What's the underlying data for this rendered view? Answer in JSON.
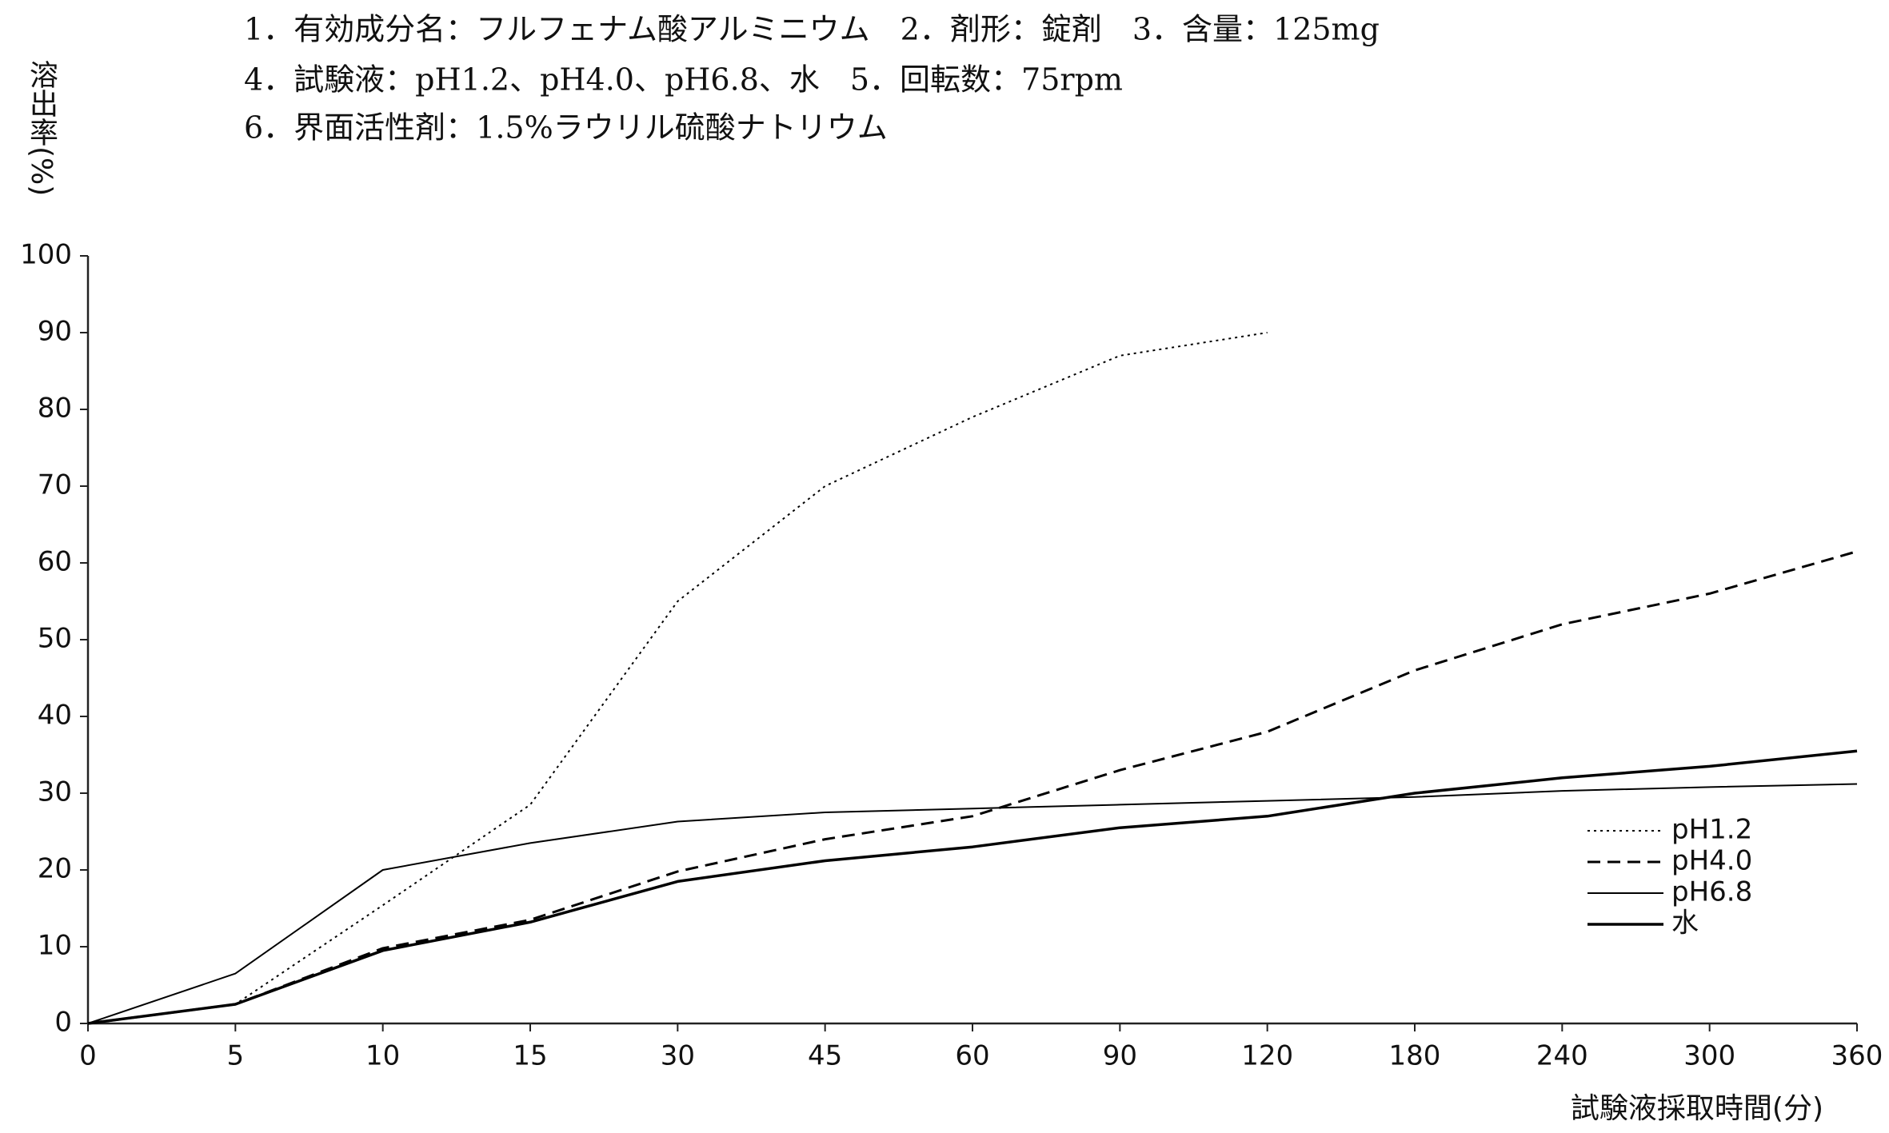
{
  "chart_data": {
    "type": "line",
    "title": [
      "1．有効成分名：フルフェナム酸アルミニウム　2．剤形：錠剤　3．含量：125mg",
      "4．試験液：pH1.2、pH4.0、pH6.8、水　5．回転数：75rpm",
      "6．界面活性剤：1.5%ラウリル硫酸ナトリウム"
    ],
    "y_label": "溶出率(%)",
    "x_label": "試験液採取時間(分)",
    "categories": [
      "0",
      "5",
      "10",
      "15",
      "30",
      "45",
      "60",
      "90",
      "120",
      "180",
      "240",
      "300",
      "360"
    ],
    "ylim": [
      0,
      100
    ],
    "yticks": [
      0,
      10,
      20,
      30,
      40,
      50,
      60,
      70,
      80,
      90,
      100
    ],
    "legend": "lower right",
    "series": [
      {
        "name": "pH1.2",
        "color": "#000000",
        "dash": "dotted",
        "values": [
          0,
          2.5,
          15.4,
          28.5,
          55,
          70,
          79,
          87,
          90,
          null,
          null,
          null,
          null
        ]
      },
      {
        "name": "pH4.0",
        "color": "#000000",
        "dash": "dashed",
        "values": [
          0,
          2.5,
          9.8,
          13.5,
          19.8,
          24,
          27,
          33,
          38,
          46,
          52,
          56,
          61.5
        ]
      },
      {
        "name": "pH6.8",
        "color": "#000000",
        "dash": "thin",
        "values": [
          0,
          6.5,
          20,
          23.5,
          26.3,
          27.5,
          28,
          28.5,
          29,
          29.5,
          30.3,
          30.8,
          31.2
        ]
      },
      {
        "name": "水",
        "color": "#000000",
        "dash": "solid",
        "values": [
          0,
          2.5,
          9.5,
          13.2,
          18.5,
          21.2,
          23,
          25.5,
          27,
          30,
          32,
          33.5,
          35.5
        ]
      }
    ]
  }
}
